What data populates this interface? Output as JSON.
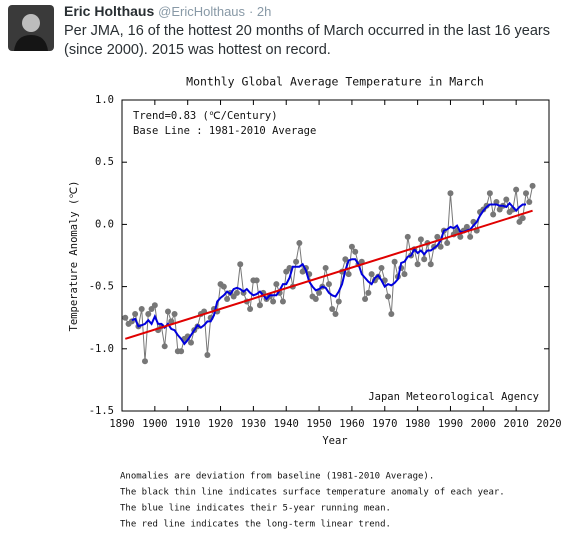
{
  "tweet": {
    "name": "Eric Holthaus",
    "handle": "@EricHolthaus",
    "time": "· 2h",
    "text": "Per JMA, 16 of the hottest 20 months of March occurred in the last 16 years (since 2000). 2015 was hottest on record."
  },
  "chart_data": {
    "type": "line",
    "title": "Monthly Global Average Temperature in March",
    "x_label": "Year",
    "y_label": "Temperature Anomaly (℃)",
    "annotations": [
      "Trend=0.83 (℃/Century)",
      "Base Line : 1981-2010 Average",
      "Japan Meteorological Agency"
    ],
    "notes": [
      "Anomalies are deviation from baseline (1981-2010 Average).",
      "The black thin line indicates surface temperature anomaly of each year.",
      "The blue line indicates their 5-year running mean.",
      "The red line indicates the long-term linear trend."
    ],
    "x": [
      1891,
      1892,
      1893,
      1894,
      1895,
      1896,
      1897,
      1898,
      1899,
      1900,
      1901,
      1902,
      1903,
      1904,
      1905,
      1906,
      1907,
      1908,
      1909,
      1910,
      1911,
      1912,
      1913,
      1914,
      1915,
      1916,
      1917,
      1918,
      1919,
      1920,
      1921,
      1922,
      1923,
      1924,
      1925,
      1926,
      1927,
      1928,
      1929,
      1930,
      1931,
      1932,
      1933,
      1934,
      1935,
      1936,
      1937,
      1938,
      1939,
      1940,
      1941,
      1942,
      1943,
      1944,
      1945,
      1946,
      1947,
      1948,
      1949,
      1950,
      1951,
      1952,
      1953,
      1954,
      1955,
      1956,
      1957,
      1958,
      1959,
      1960,
      1961,
      1962,
      1963,
      1964,
      1965,
      1966,
      1967,
      1968,
      1969,
      1970,
      1971,
      1972,
      1973,
      1974,
      1975,
      1976,
      1977,
      1978,
      1979,
      1980,
      1981,
      1982,
      1983,
      1984,
      1985,
      1986,
      1987,
      1988,
      1989,
      1990,
      1991,
      1992,
      1993,
      1994,
      1995,
      1996,
      1997,
      1998,
      1999,
      2000,
      2001,
      2002,
      2003,
      2004,
      2005,
      2006,
      2007,
      2008,
      2009,
      2010,
      2011,
      2012,
      2013,
      2014,
      2015
    ],
    "series": [
      {
        "color": "#777777",
        "values": [
          -0.75,
          -0.8,
          -0.78,
          -0.72,
          -0.82,
          -0.68,
          -1.1,
          -0.72,
          -0.68,
          -0.65,
          -0.85,
          -0.82,
          -0.98,
          -0.7,
          -0.78,
          -0.72,
          -1.02,
          -1.02,
          -0.92,
          -0.9,
          -0.95,
          -0.85,
          -0.82,
          -0.72,
          -0.7,
          -1.05,
          -0.75,
          -0.68,
          -0.7,
          -0.48,
          -0.5,
          -0.6,
          -0.55,
          -0.58,
          -0.55,
          -0.32,
          -0.55,
          -0.62,
          -0.68,
          -0.45,
          -0.45,
          -0.65,
          -0.55,
          -0.6,
          -0.58,
          -0.62,
          -0.48,
          -0.55,
          -0.62,
          -0.38,
          -0.35,
          -0.5,
          -0.3,
          -0.15,
          -0.38,
          -0.35,
          -0.4,
          -0.58,
          -0.6,
          -0.55,
          -0.5,
          -0.35,
          -0.48,
          -0.68,
          -0.72,
          -0.62,
          -0.38,
          -0.28,
          -0.4,
          -0.18,
          -0.22,
          -0.32,
          -0.3,
          -0.6,
          -0.55,
          -0.4,
          -0.45,
          -0.42,
          -0.35,
          -0.45,
          -0.58,
          -0.72,
          -0.3,
          -0.42,
          -0.35,
          -0.4,
          -0.1,
          -0.25,
          -0.2,
          -0.32,
          -0.12,
          -0.28,
          -0.15,
          -0.32,
          -0.18,
          -0.1,
          -0.18,
          -0.05,
          -0.15,
          0.25,
          -0.08,
          -0.05,
          -0.1,
          -0.05,
          -0.02,
          -0.1,
          0.02,
          -0.05,
          0.1,
          0.12,
          0.15,
          0.25,
          0.08,
          0.18,
          0.12,
          0.15,
          0.2,
          0.1,
          0.12,
          0.28,
          0.02,
          0.05,
          0.25,
          0.18,
          0.31
        ]
      },
      {
        "color": "#0000dd",
        "values": [
          null,
          null,
          -0.77,
          -0.76,
          -0.82,
          -0.81,
          -0.8,
          -0.77,
          -0.8,
          -0.74,
          -0.8,
          -0.8,
          -0.83,
          -0.8,
          -0.84,
          -0.85,
          -0.89,
          -0.92,
          -0.96,
          -0.93,
          -0.89,
          -0.85,
          -0.81,
          -0.83,
          -0.81,
          -0.78,
          -0.78,
          -0.73,
          -0.62,
          -0.59,
          -0.57,
          -0.54,
          -0.56,
          -0.52,
          -0.51,
          -0.52,
          -0.54,
          -0.52,
          -0.55,
          -0.57,
          -0.56,
          -0.54,
          -0.57,
          -0.6,
          -0.57,
          -0.57,
          -0.57,
          -0.53,
          -0.48,
          -0.48,
          -0.43,
          -0.34,
          -0.34,
          -0.34,
          -0.32,
          -0.37,
          -0.46,
          -0.5,
          -0.53,
          -0.52,
          -0.5,
          -0.51,
          -0.55,
          -0.57,
          -0.58,
          -0.54,
          -0.48,
          -0.37,
          -0.29,
          -0.28,
          -0.28,
          -0.32,
          -0.4,
          -0.43,
          -0.46,
          -0.48,
          -0.43,
          -0.41,
          -0.45,
          -0.5,
          -0.48,
          -0.49,
          -0.47,
          -0.44,
          -0.31,
          -0.3,
          -0.26,
          -0.25,
          -0.2,
          -0.23,
          -0.21,
          -0.24,
          -0.21,
          -0.21,
          -0.19,
          -0.17,
          -0.13,
          -0.05,
          -0.04,
          -0.02,
          -0.03,
          -0.01,
          -0.06,
          -0.06,
          -0.05,
          -0.04,
          -0.01,
          0.02,
          0.07,
          0.11,
          0.14,
          0.16,
          0.16,
          0.16,
          0.15,
          0.15,
          0.14,
          0.17,
          0.14,
          0.11,
          0.14,
          0.16,
          0.16,
          null,
          null
        ]
      }
    ],
    "trend": {
      "color": "#e00000",
      "x": [
        1891,
        2015
      ],
      "values": [
        -0.92,
        0.11
      ]
    },
    "xlim": [
      1890,
      2020
    ],
    "xticks": [
      1890,
      1900,
      1910,
      1920,
      1930,
      1940,
      1950,
      1960,
      1970,
      1980,
      1990,
      2000,
      2010,
      2020
    ],
    "ylim": [
      -1.5,
      1.0
    ],
    "yticks": [
      {
        "value": -1.5,
        "label": "-1.5"
      },
      {
        "value": -1.0,
        "label": "-1.0"
      },
      -0.5,
      {
        "value": 0,
        "label": "0.0"
      },
      0.5,
      {
        "value": 1.0,
        "label": "1.0"
      }
    ]
  }
}
